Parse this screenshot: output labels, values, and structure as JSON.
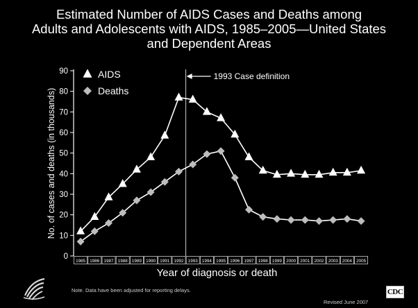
{
  "title_lines": [
    "Estimated Number of AIDS Cases and Deaths among",
    "Adults and Adolescents with AIDS, 1985–2005—United States",
    "and Dependent Areas"
  ],
  "annotation": "1993 Case definition",
  "footnote": "Note. Data have been adjusted for reporting delays.",
  "revised": "Revised June 2007",
  "cdc_logo_text": "CDC",
  "colors": {
    "background": "#000000",
    "text": "#ffffff",
    "series": "#ffffff"
  },
  "chart_data": {
    "type": "line",
    "xlabel": "Year of diagnosis or death",
    "ylabel": "No. of cases and deaths (in thousands)",
    "ylim": [
      0,
      90
    ],
    "yticks": [
      0,
      10,
      20,
      30,
      40,
      50,
      60,
      70,
      80,
      90
    ],
    "categories": [
      "1985",
      "1986",
      "1987",
      "1988",
      "1989",
      "1990",
      "1991",
      "1992",
      "1993",
      "1994",
      "1995",
      "1996",
      "1997",
      "1998",
      "1999",
      "2000",
      "2001",
      "2002",
      "2003",
      "2004",
      "2005"
    ],
    "reference_line": {
      "category": "1993",
      "label": "1993 Case definition"
    },
    "legend_position": "top-left",
    "grid": false,
    "series": [
      {
        "name": "AIDS",
        "marker": "triangle",
        "values": [
          12,
          19,
          28.5,
          35,
          42,
          48,
          58.5,
          77,
          76,
          70,
          67,
          59,
          48,
          41.5,
          39.5,
          40,
          39.5,
          39.5,
          40.5,
          40.5,
          41.5
        ]
      },
      {
        "name": "Deaths",
        "marker": "diamond",
        "values": [
          7,
          12,
          16,
          21,
          27,
          31,
          36,
          41,
          44.5,
          49.5,
          51,
          38,
          22.5,
          19,
          18,
          17.5,
          17.5,
          17,
          17.5,
          18,
          17
        ]
      }
    ]
  }
}
